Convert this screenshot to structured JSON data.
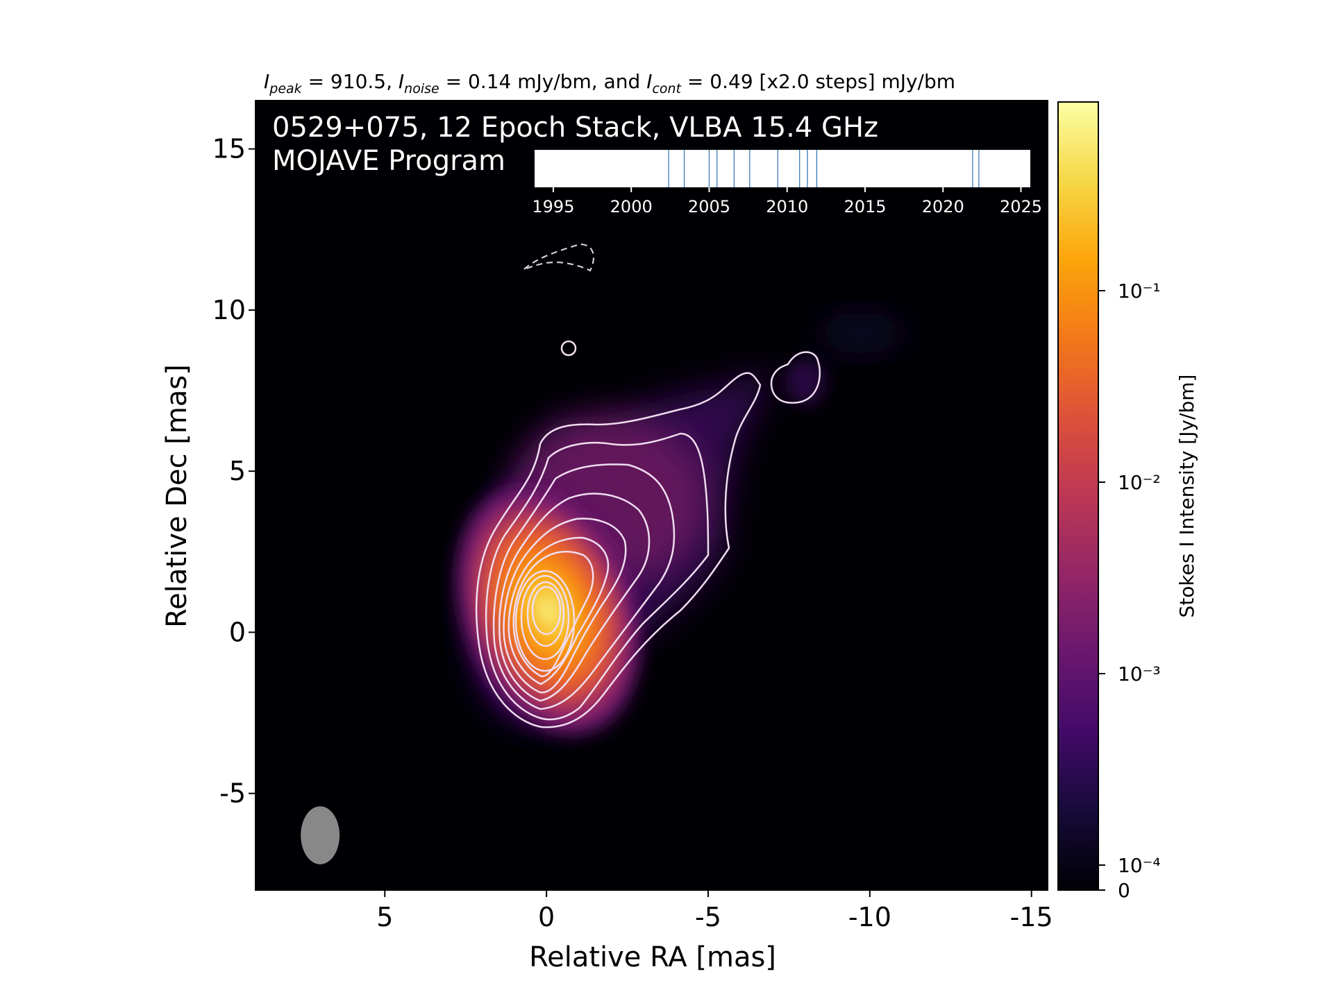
{
  "header": {
    "peak_label": "I",
    "peak_sub": "peak",
    "peak_value": " = 910.5, ",
    "noise_label": "I",
    "noise_sub": "noise",
    "noise_value": " = 0.14 mJy/bm, and ",
    "cont_label": "I",
    "cont_sub": "cont",
    "cont_value": " = 0.49 [x2.0 steps] mJy/bm"
  },
  "panel": {
    "title_line1": "0529+075, 12 Epoch Stack, VLBA 15.4 GHz",
    "title_line2": "MOJAVE Program"
  },
  "epochs": {
    "tick_labels": [
      "1995",
      "2000",
      "2005",
      "2010",
      "2015",
      "2020",
      "2025"
    ],
    "tick_years": [
      1995,
      2000,
      2005,
      2010,
      2015,
      2020,
      2025
    ],
    "range": [
      1993.8,
      2025.6
    ],
    "years": [
      2002.4,
      2003.4,
      2005.0,
      2005.5,
      2006.6,
      2007.6,
      2009.4,
      2010.8,
      2011.3,
      2011.9,
      2021.9,
      2022.3
    ],
    "line_color": "#3a7ab8"
  },
  "chart_data": {
    "type": "heatmap",
    "xlabel": "Relative RA [mas]",
    "ylabel": "Relative Dec [mas]",
    "xlim": [
      9,
      -15.5
    ],
    "ylim": [
      -8,
      16.5
    ],
    "x_ticks": [
      5,
      0,
      -5,
      -10,
      -15
    ],
    "x_tick_labels": [
      "5",
      "0",
      "-5",
      "-10",
      "-15"
    ],
    "y_ticks": [
      15,
      10,
      5,
      0,
      -5
    ],
    "y_tick_labels": [
      "15",
      "10",
      "5",
      "0",
      "-5"
    ],
    "colormap": "inferno",
    "colorbar": {
      "label": "Stokes I Intensity [Jy/bm]",
      "scale": "log",
      "ticks": [
        0,
        0.0001,
        0.001,
        0.01,
        0.1
      ],
      "tick_labels": [
        "0",
        "10⁻⁴",
        "10⁻³",
        "10⁻²",
        "10⁻¹"
      ]
    },
    "peak_position": [
      0.0,
      0.4
    ],
    "peak_intensity_mJy_per_beam": 910.5,
    "noise_mJy_per_beam": 0.14,
    "lowest_contour_mJy_per_beam": 0.49,
    "contour_step_factor": 2.0,
    "contour_color": "#f0ddf0",
    "beam": {
      "center": [
        7.0,
        -6.3
      ],
      "major": 1.8,
      "minor": 1.2,
      "pa": 0,
      "color": "#888888"
    }
  }
}
